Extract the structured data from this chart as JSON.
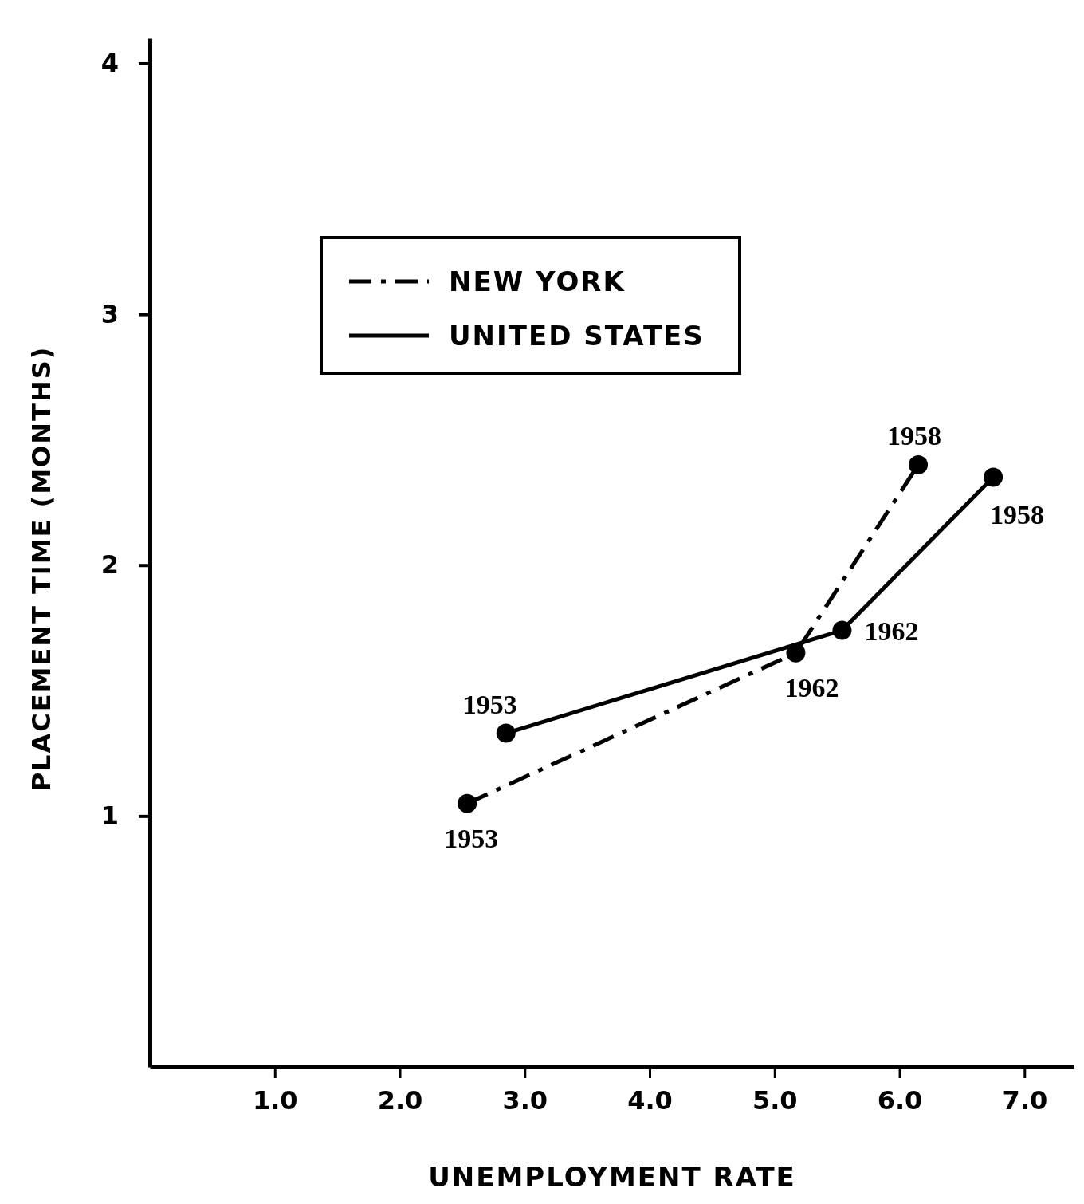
{
  "chart_data": {
    "type": "line",
    "xlabel": "UNEMPLOYMENT RATE",
    "ylabel": "PLACEMENT TIME (MONTHS)",
    "xlim": [
      0,
      7.4
    ],
    "ylim": [
      0,
      4.1
    ],
    "xticks": [
      {
        "value": 1,
        "label": "1.0"
      },
      {
        "value": 2,
        "label": "2.0"
      },
      {
        "value": 3,
        "label": "3.0"
      },
      {
        "value": 4,
        "label": "4.0"
      },
      {
        "value": 5,
        "label": "5.0"
      },
      {
        "value": 6,
        "label": "6.0"
      },
      {
        "value": 7,
        "label": "7.0"
      }
    ],
    "yticks": [
      1,
      2,
      3,
      4
    ],
    "marker": "circle",
    "legend": "top left",
    "grid": false,
    "series": [
      {
        "name": "NEW YORK",
        "color": "#000000",
        "line_style": "dashed",
        "x": [
          2.54,
          5.17,
          6.15
        ],
        "values": [
          1.05,
          1.65,
          2.4
        ]
      },
      {
        "name": "UNITED STATES",
        "color": "#000000",
        "line_style": "solid",
        "x": [
          2.85,
          5.54,
          6.75
        ],
        "values": [
          1.33,
          1.74,
          2.35
        ]
      }
    ],
    "annotations": [
      {
        "text": "1953",
        "x": 2.54,
        "y": 1.05
      },
      {
        "text": "1962",
        "x": 5.17,
        "y": 1.65
      },
      {
        "text": "1958",
        "x": 6.15,
        "y": 2.4
      },
      {
        "text": "1953",
        "x": 2.85,
        "y": 1.33
      },
      {
        "text": "1962",
        "x": 5.54,
        "y": 1.74
      },
      {
        "text": "1958",
        "x": 6.75,
        "y": 2.35
      }
    ]
  }
}
